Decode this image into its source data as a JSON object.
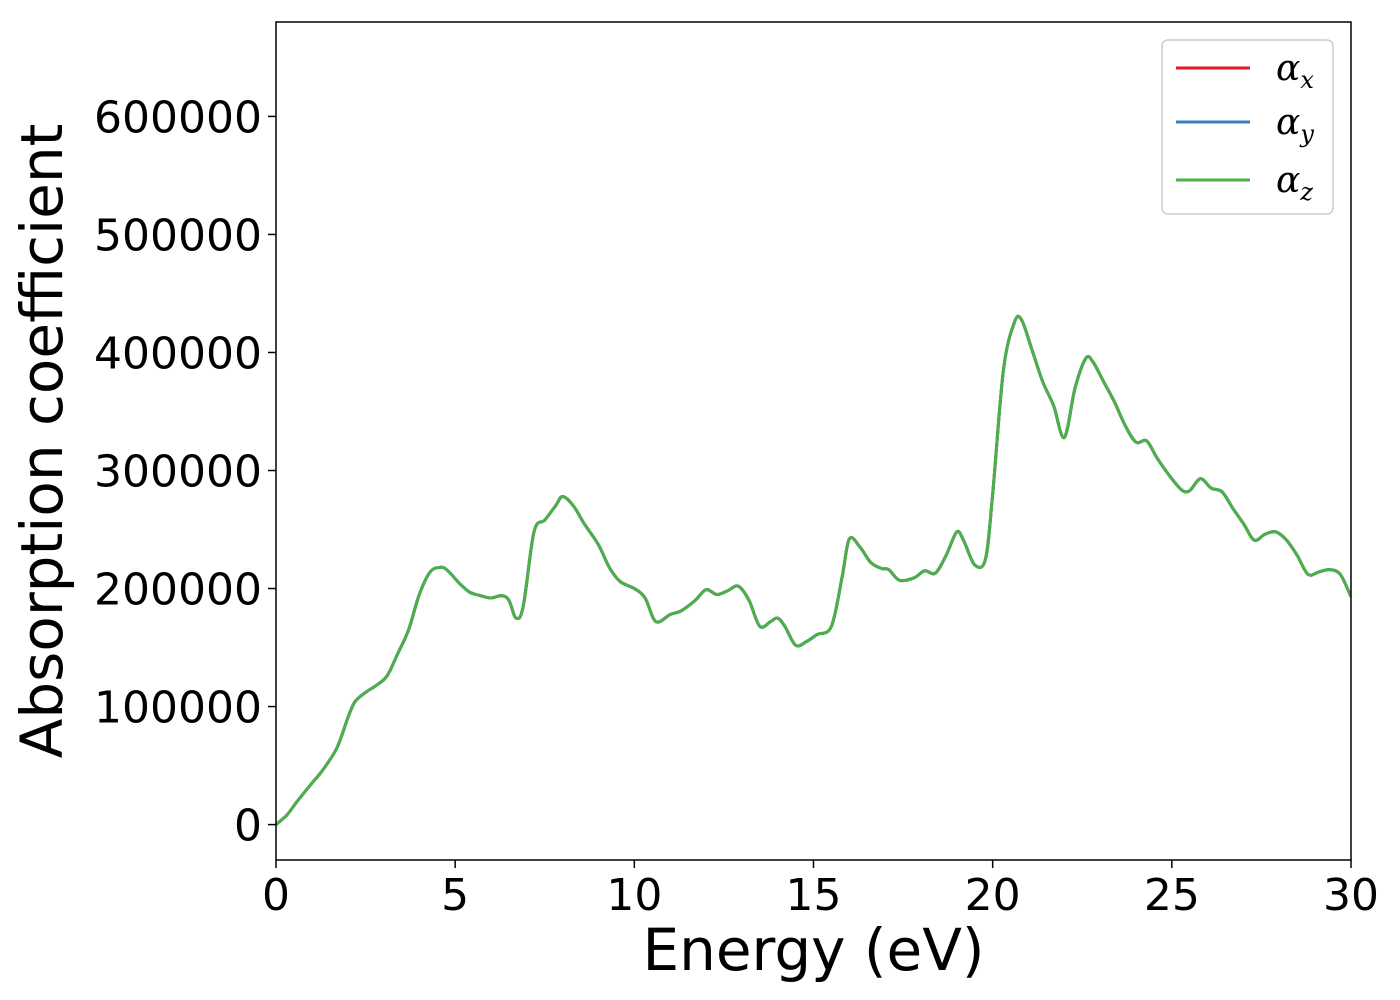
{
  "chart_data": {
    "type": "line",
    "title": "",
    "xlabel": "Energy (eV)",
    "ylabel": "Absorption coefficient",
    "xlim": [
      0,
      30
    ],
    "ylim": [
      -30000,
      680000
    ],
    "xticks": [
      0,
      5,
      10,
      15,
      20,
      25,
      30
    ],
    "xtick_labels": [
      "0",
      "5",
      "10",
      "15",
      "20",
      "25",
      "30"
    ],
    "yticks": [
      0,
      100000,
      200000,
      300000,
      400000,
      500000,
      600000
    ],
    "ytick_labels": [
      "0",
      "100000",
      "200000",
      "300000",
      "400000",
      "500000",
      "600000"
    ],
    "grid": false,
    "legend_position": "top-right",
    "x": [
      0,
      0.3,
      0.6,
      1.0,
      1.3,
      1.7,
      2.0,
      2.2,
      2.5,
      2.8,
      3.1,
      3.4,
      3.7,
      4.0,
      4.3,
      4.6,
      4.8,
      5.1,
      5.4,
      5.7,
      6.0,
      6.3,
      6.5,
      6.7,
      6.9,
      7.2,
      7.5,
      7.8,
      8.0,
      8.3,
      8.6,
      9.0,
      9.3,
      9.6,
      10.0,
      10.3,
      10.6,
      11.0,
      11.3,
      11.7,
      12.0,
      12.3,
      12.6,
      12.9,
      13.2,
      13.5,
      13.8,
      14.0,
      14.2,
      14.5,
      14.8,
      15.1,
      15.5,
      15.8,
      16.0,
      16.3,
      16.6,
      16.9,
      17.1,
      17.4,
      17.8,
      18.1,
      18.4,
      18.7,
      19.0,
      19.2,
      19.5,
      19.8,
      20.0,
      20.3,
      20.6,
      20.8,
      21.1,
      21.4,
      21.7,
      22.0,
      22.3,
      22.6,
      22.8,
      23.1,
      23.4,
      23.7,
      24.0,
      24.3,
      24.6,
      25.0,
      25.3,
      25.5,
      25.8,
      26.1,
      26.4,
      26.7,
      27.0,
      27.3,
      27.6,
      27.9,
      28.2,
      28.5,
      28.8,
      29.1,
      29.4,
      29.7,
      30.0
    ],
    "series": [
      {
        "name": "α_x",
        "label_base": "α",
        "label_sub": "x",
        "color": "#e41a1c",
        "y": [
          0,
          8000,
          20000,
          35000,
          46000,
          65000,
          90000,
          104000,
          112000,
          118000,
          126000,
          145000,
          165000,
          195000,
          214000,
          218000,
          215000,
          205000,
          197000,
          194000,
          192000,
          194000,
          190000,
          175000,
          185000,
          248000,
          258000,
          270000,
          278000,
          270000,
          255000,
          237000,
          218000,
          206000,
          200000,
          192000,
          172000,
          178000,
          181000,
          190000,
          199000,
          195000,
          198000,
          202000,
          190000,
          168000,
          172000,
          175000,
          168000,
          152000,
          155000,
          161000,
          168000,
          210000,
          242000,
          235000,
          222000,
          217000,
          216000,
          207000,
          209000,
          215000,
          213000,
          228000,
          248000,
          240000,
          220000,
          225000,
          280000,
          385000,
          425000,
          428000,
          402000,
          375000,
          355000,
          328000,
          370000,
          395000,
          392000,
          375000,
          358000,
          338000,
          324000,
          325000,
          310000,
          293000,
          283000,
          283000,
          293000,
          285000,
          282000,
          268000,
          255000,
          241000,
          246000,
          248000,
          241000,
          228000,
          212000,
          214000,
          216000,
          212000,
          193000
        ]
      },
      {
        "name": "α_y",
        "label_base": "α",
        "label_sub": "y",
        "color": "#377eb8",
        "y": [
          0,
          8000,
          20000,
          35000,
          46000,
          65000,
          90000,
          104000,
          112000,
          118000,
          126000,
          145000,
          165000,
          195000,
          214000,
          218000,
          215000,
          205000,
          197000,
          194000,
          192000,
          194000,
          190000,
          175000,
          185000,
          248000,
          258000,
          270000,
          278000,
          270000,
          255000,
          237000,
          218000,
          206000,
          200000,
          192000,
          172000,
          178000,
          181000,
          190000,
          199000,
          195000,
          198000,
          202000,
          190000,
          168000,
          172000,
          175000,
          168000,
          152000,
          155000,
          161000,
          168000,
          210000,
          242000,
          235000,
          222000,
          217000,
          216000,
          207000,
          209000,
          215000,
          213000,
          228000,
          248000,
          240000,
          220000,
          225000,
          280000,
          385000,
          425000,
          428000,
          402000,
          375000,
          355000,
          328000,
          370000,
          395000,
          392000,
          375000,
          358000,
          338000,
          324000,
          325000,
          310000,
          293000,
          283000,
          283000,
          293000,
          285000,
          282000,
          268000,
          255000,
          241000,
          246000,
          248000,
          241000,
          228000,
          212000,
          214000,
          216000,
          212000,
          193000
        ]
      },
      {
        "name": "α_z",
        "label_base": "α",
        "label_sub": "z",
        "color": "#4daf4a",
        "y": [
          0,
          8000,
          20000,
          35000,
          46000,
          65000,
          90000,
          104000,
          112000,
          118000,
          126000,
          145000,
          165000,
          195000,
          214000,
          218000,
          215000,
          205000,
          197000,
          194000,
          192000,
          194000,
          190000,
          175000,
          185000,
          248000,
          258000,
          270000,
          278000,
          270000,
          255000,
          237000,
          218000,
          206000,
          200000,
          192000,
          172000,
          178000,
          181000,
          190000,
          199000,
          195000,
          198000,
          202000,
          190000,
          168000,
          172000,
          175000,
          168000,
          152000,
          155000,
          161000,
          168000,
          210000,
          242000,
          235000,
          222000,
          217000,
          216000,
          207000,
          209000,
          215000,
          213000,
          228000,
          248000,
          240000,
          220000,
          225000,
          280000,
          385000,
          425000,
          428000,
          402000,
          375000,
          355000,
          328000,
          370000,
          395000,
          392000,
          375000,
          358000,
          338000,
          324000,
          325000,
          310000,
          293000,
          283000,
          283000,
          293000,
          285000,
          282000,
          268000,
          255000,
          241000,
          246000,
          248000,
          241000,
          228000,
          212000,
          214000,
          216000,
          212000,
          193000
        ]
      }
    ]
  }
}
